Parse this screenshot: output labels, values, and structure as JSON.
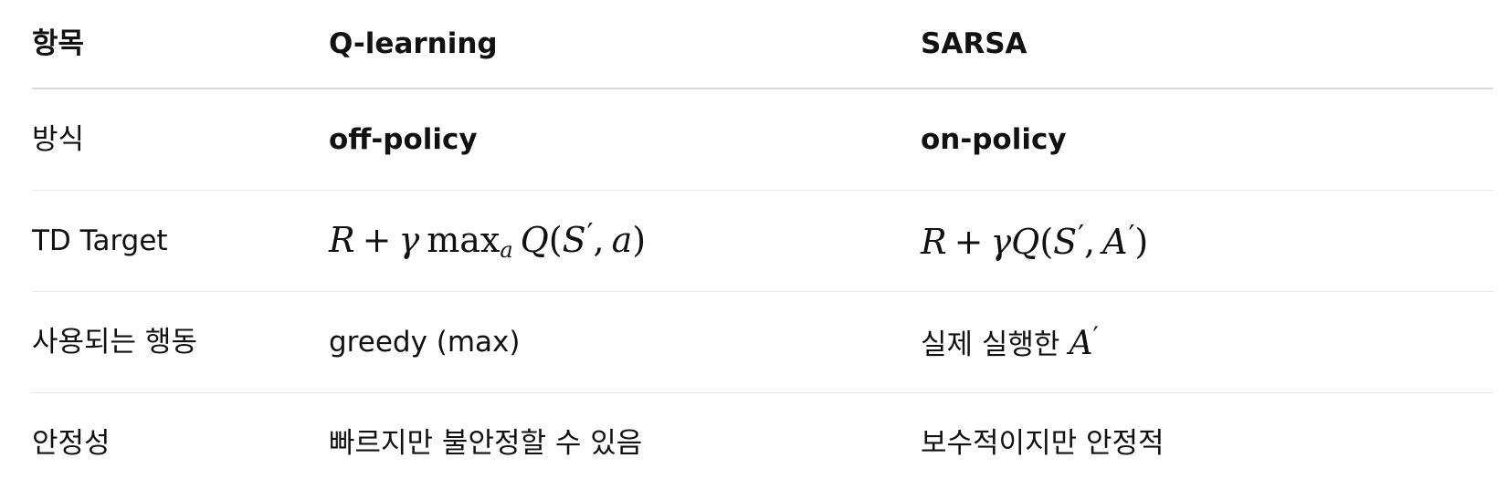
{
  "header": {
    "col1": "항목",
    "col2": "Q-learning",
    "col3": "SARSA"
  },
  "rows": [
    {
      "label": "방식",
      "q_learning": "off-policy",
      "sarsa": "on-policy"
    },
    {
      "label": "TD Target",
      "q_learning_formula": "R + γ max_a Q(S′, a)",
      "sarsa_formula": "R + γQ(S′, A′)"
    },
    {
      "label": "사용되는 행동",
      "q_learning": "greedy (max)",
      "sarsa_text": "실제 실행한",
      "sarsa_math": "A′"
    },
    {
      "label": "안정성",
      "q_learning": "빠르지만 불안정할 수 있음",
      "sarsa": "보수적이지만 안정적"
    }
  ]
}
